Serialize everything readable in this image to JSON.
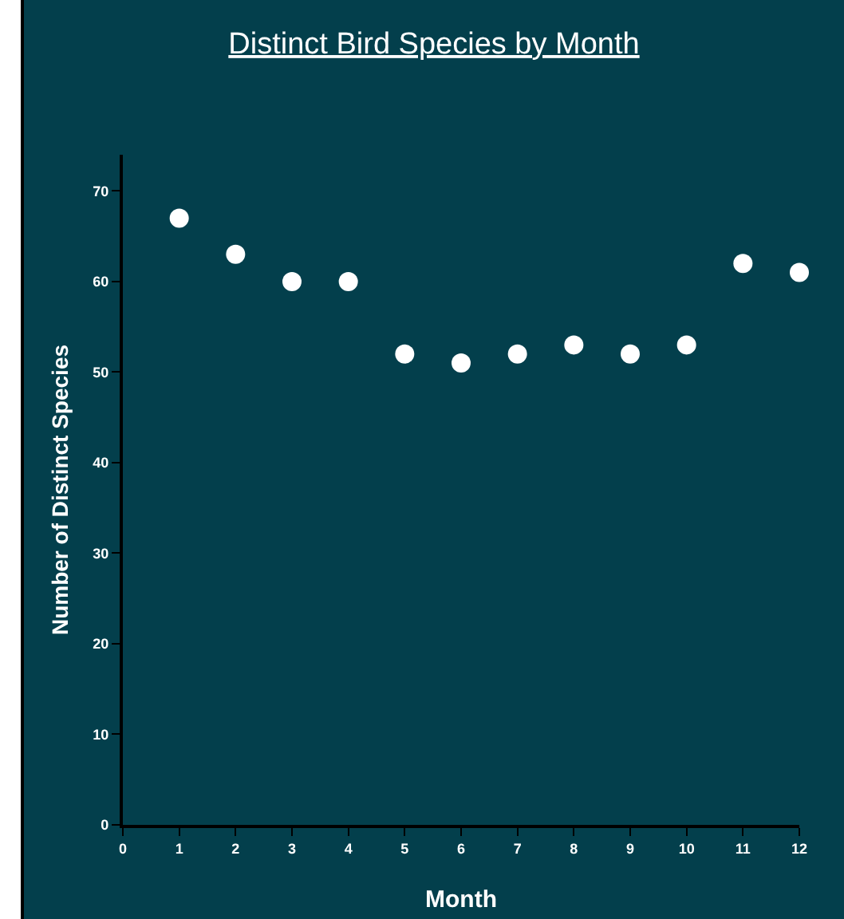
{
  "chart_data": {
    "type": "scatter",
    "title": "Distinct Bird Species by Month",
    "xlabel": "Month",
    "ylabel": "Number of Distinct Species",
    "x": [
      1,
      2,
      3,
      4,
      5,
      6,
      7,
      8,
      9,
      10,
      11,
      12
    ],
    "series": [
      {
        "color": "#ffffff",
        "values": [
          67,
          63,
          60,
          60,
          52,
          51,
          52,
          53,
          52,
          53,
          62,
          61
        ]
      }
    ],
    "xlim": [
      0,
      12
    ],
    "xticks": [
      0,
      1,
      2,
      3,
      4,
      5,
      6,
      7,
      8,
      9,
      10,
      11,
      12
    ],
    "ylim": [
      0,
      74
    ],
    "yticks": [
      0,
      10,
      20,
      30,
      40,
      50,
      60,
      70
    ],
    "grid": false,
    "marker": "circle"
  }
}
